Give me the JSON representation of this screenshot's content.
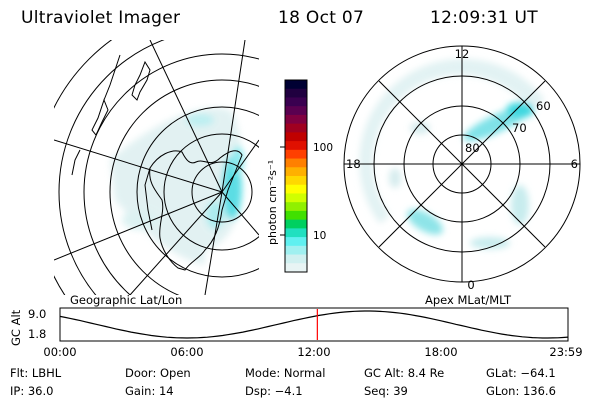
{
  "header": {
    "instrument": "Ultraviolet Imager",
    "date": "18 Oct 07",
    "time": "12:09:31 UT"
  },
  "geo_panel": {
    "label": "Geographic Lat/Lon"
  },
  "colorbar": {
    "unit_label": "photon cm⁻²s⁻¹",
    "tick_labels": [
      "100",
      "10"
    ],
    "colors": [
      "#000033",
      "#200040",
      "#3a0050",
      "#5a0050",
      "#800040",
      "#a00020",
      "#c00000",
      "#e01000",
      "#ff4000",
      "#ff8000",
      "#ffb000",
      "#ffd800",
      "#ffff00",
      "#d0ff00",
      "#90f000",
      "#40e000",
      "#00d060",
      "#20e0c0",
      "#60f0f0",
      "#a0f0f0",
      "#d0f0f0",
      "#e8f4f4"
    ]
  },
  "polar_panel": {
    "label": "Apex MLat/MLT",
    "mlt_labels": {
      "top": "12",
      "right": "6",
      "bottom": "0",
      "left": "18"
    },
    "mlat_labels": [
      "80",
      "70",
      "60"
    ]
  },
  "altitude_plot": {
    "ylabel": "GC Alt",
    "y_ticks": [
      "9.0",
      "1.8"
    ],
    "x_ticks": [
      "00:00",
      "06:00",
      "12:00",
      "18:00",
      "23:59"
    ],
    "current_time_hours": 12.158,
    "marker_color": "#ff0000"
  },
  "info": {
    "flt": "Flt: LBHL",
    "door": "Door: Open",
    "mode": "Mode: Normal",
    "gc_alt": "GC Alt: 8.4 Re",
    "glat": "GLat: −64.1",
    "ip": "IP: 36.0",
    "gain": "Gain: 14",
    "dsp": "Dsp:   −4.1",
    "seq": "Seq: 39",
    "glon": "GLon: 136.6"
  }
}
